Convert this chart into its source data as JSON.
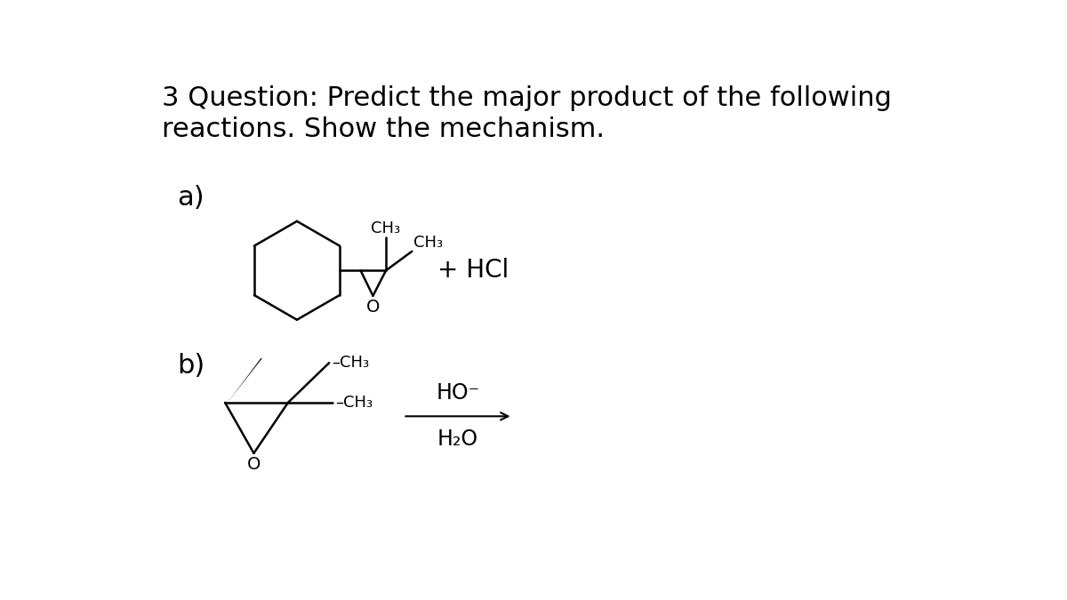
{
  "title_line1": "3 Question: Predict the major product of the following",
  "title_line2": "reactions. Show the mechanism.",
  "title_fontsize": 22,
  "bg_color": "#ffffff",
  "text_color": "#000000",
  "label_a": "a)",
  "label_b": "b)",
  "label_fontsize": 22,
  "mol_fontsize_a": 13,
  "mol_fontsize_b": 13,
  "reagent_fontsize": 20,
  "lw": 1.8
}
